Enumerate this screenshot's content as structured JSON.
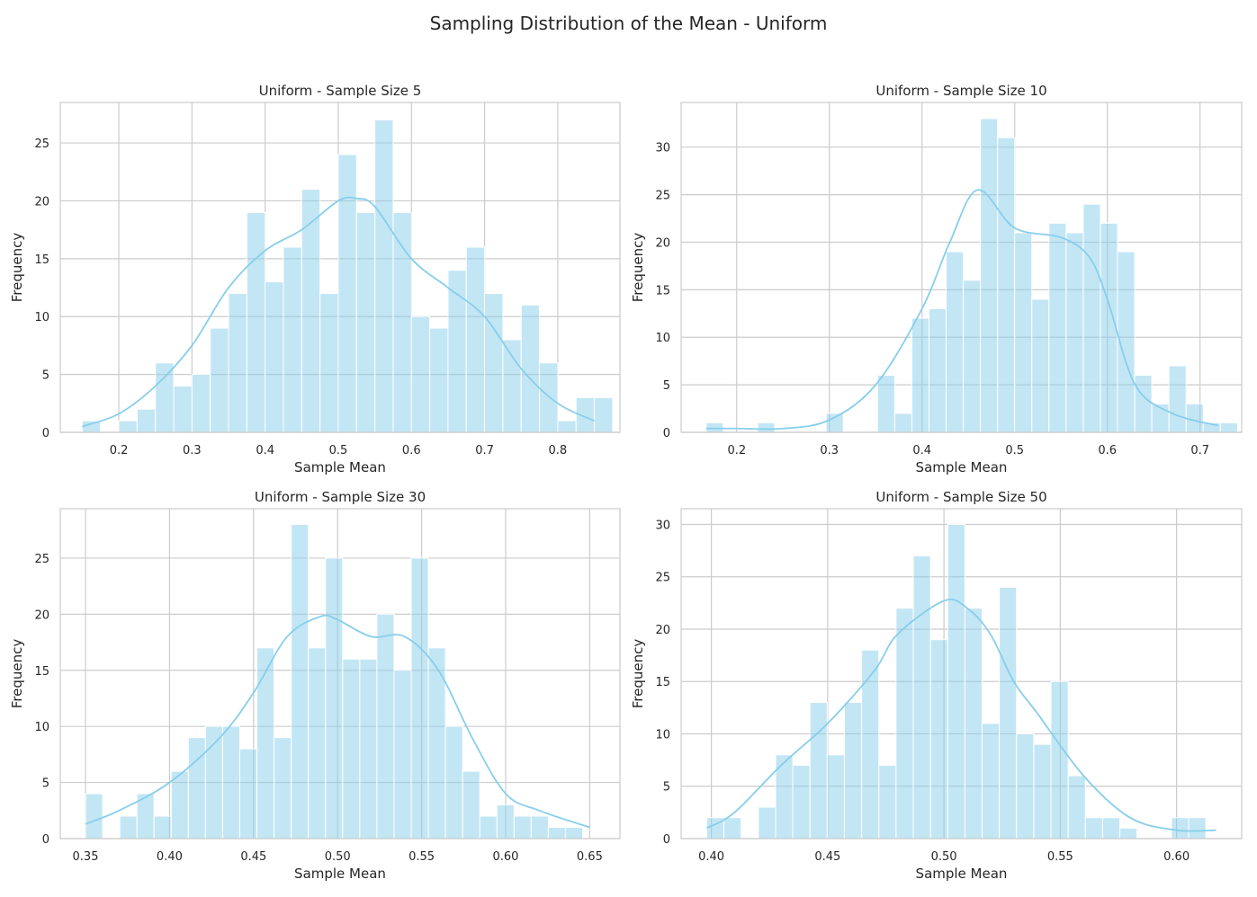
{
  "suptitle": "Sampling Distribution of the Mean - Uniform",
  "colors": {
    "bar": "#87ceeb",
    "kde": "#87ceeb",
    "grid": "#cccccc",
    "frame": "#cccccc"
  },
  "chart_data": [
    {
      "type": "bar",
      "title": "Uniform - Sample Size 5",
      "xlabel": "Sample Mean",
      "ylabel": "Frequency",
      "bin_start": 0.15,
      "bin_width": 0.025,
      "values": [
        1,
        0,
        1,
        2,
        6,
        4,
        5,
        9,
        12,
        19,
        13,
        16,
        21,
        12,
        24,
        19,
        27,
        19,
        10,
        9,
        14,
        16,
        12,
        8,
        11,
        6,
        1,
        3,
        3
      ],
      "kde_x": [
        0.15,
        0.2,
        0.25,
        0.3,
        0.35,
        0.4,
        0.45,
        0.5,
        0.525,
        0.55,
        0.6,
        0.65,
        0.7,
        0.75,
        0.8,
        0.85
      ],
      "kde_y": [
        0.5,
        1.6,
        4.0,
        7.5,
        12.5,
        15.7,
        17.5,
        20.0,
        20.2,
        19.5,
        15.0,
        12.5,
        10.0,
        5.5,
        2.5,
        1.0
      ],
      "xlim": [
        0.12,
        0.885
      ],
      "ylim": [
        0,
        28.5
      ],
      "xticks": [
        0.2,
        0.3,
        0.4,
        0.5,
        0.6,
        0.7,
        0.8
      ],
      "xtick_labels": [
        "0.2",
        "0.3",
        "0.4",
        "0.5",
        "0.6",
        "0.7",
        "0.8"
      ],
      "yticks": [
        0,
        5,
        10,
        15,
        20,
        25
      ],
      "ytick_labels": [
        "0",
        "5",
        "10",
        "15",
        "20",
        "25"
      ],
      "grid": true
    },
    {
      "type": "bar",
      "title": "Uniform - Sample Size 10",
      "xlabel": "Sample Mean",
      "ylabel": "Frequency",
      "bin_start": 0.167,
      "bin_width": 0.0185,
      "values": [
        1,
        0,
        0,
        1,
        0,
        0,
        0,
        2,
        0,
        0,
        6,
        2,
        12,
        13,
        19,
        16,
        33,
        31,
        21,
        14,
        22,
        21,
        24,
        22,
        19,
        6,
        3,
        7,
        3,
        1,
        1
      ],
      "kde_x": [
        0.167,
        0.2,
        0.25,
        0.3,
        0.35,
        0.4,
        0.43,
        0.46,
        0.5,
        0.55,
        0.58,
        0.6,
        0.63,
        0.67,
        0.72
      ],
      "kde_y": [
        0.4,
        0.4,
        0.4,
        1.3,
        5.0,
        13.0,
        20.0,
        25.5,
        21.5,
        20.5,
        18.5,
        14.0,
        5.0,
        2.0,
        0.7
      ],
      "xlim": [
        0.14,
        0.745
      ],
      "ylim": [
        0,
        34.7
      ],
      "xticks": [
        0.2,
        0.3,
        0.4,
        0.5,
        0.6,
        0.7
      ],
      "xtick_labels": [
        "0.2",
        "0.3",
        "0.4",
        "0.5",
        "0.6",
        "0.7"
      ],
      "yticks": [
        0,
        5,
        10,
        15,
        20,
        25,
        30
      ],
      "ytick_labels": [
        "0",
        "5",
        "10",
        "15",
        "20",
        "25",
        "30"
      ],
      "grid": true
    },
    {
      "type": "bar",
      "title": "Uniform - Sample Size 30",
      "xlabel": "Sample Mean",
      "ylabel": "Frequency",
      "bin_start": 0.35,
      "bin_width": 0.0102,
      "values": [
        4,
        0,
        2,
        4,
        2,
        6,
        9,
        10,
        10,
        8,
        17,
        9,
        28,
        17,
        25,
        16,
        16,
        20,
        15,
        25,
        17,
        10,
        6,
        2,
        3,
        2,
        2,
        1,
        1
      ],
      "kde_x": [
        0.35,
        0.37,
        0.4,
        0.43,
        0.45,
        0.47,
        0.49,
        0.5,
        0.52,
        0.54,
        0.56,
        0.58,
        0.6,
        0.62,
        0.65
      ],
      "kde_y": [
        1.3,
        2.5,
        5.0,
        9.0,
        13.0,
        18.0,
        19.8,
        19.5,
        18.0,
        18.0,
        15.0,
        9.0,
        4.0,
        2.5,
        1.0
      ],
      "xlim": [
        0.335,
        0.668
      ],
      "ylim": [
        0,
        29.4
      ],
      "xticks": [
        0.35,
        0.4,
        0.45,
        0.5,
        0.55,
        0.6,
        0.65
      ],
      "xtick_labels": [
        "0.35",
        "0.40",
        "0.45",
        "0.50",
        "0.55",
        "0.60",
        "0.65"
      ],
      "yticks": [
        0,
        5,
        10,
        15,
        20,
        25
      ],
      "ytick_labels": [
        "0",
        "5",
        "10",
        "15",
        "20",
        "25"
      ],
      "grid": true
    },
    {
      "type": "bar",
      "title": "Uniform - Sample Size 50",
      "xlabel": "Sample Mean",
      "ylabel": "Frequency",
      "bin_start": 0.398,
      "bin_width": 0.0074,
      "values": [
        2,
        2,
        0,
        3,
        8,
        7,
        13,
        8,
        13,
        18,
        7,
        22,
        27,
        19,
        30,
        22,
        11,
        24,
        10,
        9,
        15,
        6,
        2,
        2,
        1,
        0,
        0,
        2,
        2
      ],
      "kde_x": [
        0.398,
        0.41,
        0.43,
        0.45,
        0.47,
        0.48,
        0.5,
        0.51,
        0.52,
        0.53,
        0.54,
        0.56,
        0.58,
        0.6,
        0.617
      ],
      "kde_y": [
        1.0,
        2.5,
        7.0,
        11.0,
        16.0,
        19.5,
        22.7,
        22.0,
        19.5,
        15.0,
        12.0,
        6.0,
        2.0,
        0.8,
        0.8
      ],
      "xlim": [
        0.387,
        0.628
      ],
      "ylim": [
        0,
        31.5
      ],
      "xticks": [
        0.4,
        0.45,
        0.5,
        0.55,
        0.6
      ],
      "xtick_labels": [
        "0.40",
        "0.45",
        "0.50",
        "0.55",
        "0.60"
      ],
      "yticks": [
        0,
        5,
        10,
        15,
        20,
        25,
        30
      ],
      "ytick_labels": [
        "0",
        "5",
        "10",
        "15",
        "20",
        "25",
        "30"
      ],
      "grid": true
    }
  ]
}
